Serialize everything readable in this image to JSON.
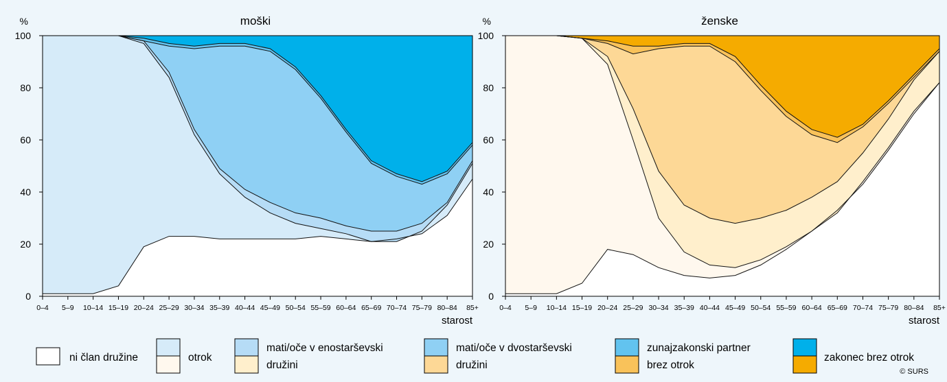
{
  "chart_data": {
    "type": "area",
    "stacked": true,
    "ylim": [
      0,
      100
    ],
    "yticks": [
      0,
      20,
      40,
      60,
      80,
      100
    ],
    "ylabel": "%",
    "xlabel": "starost",
    "categories": [
      "0–4",
      "5–9",
      "10–14",
      "15–19",
      "20–24",
      "25–29",
      "30–34",
      "35–39",
      "40–44",
      "45–49",
      "50–54",
      "55–59",
      "60–64",
      "65–69",
      "70–74",
      "75–79",
      "80–84",
      "85+"
    ],
    "legend": {
      "placement": "bottom",
      "items": [
        {
          "label": "ni član družine",
          "color_m": "#ffffff",
          "color_f": null
        },
        {
          "label": "otrok",
          "color_m": "#d6ebf9",
          "color_f": "#fff8ee"
        },
        {
          "label": "mati/oče v enostarševski družini",
          "color_m": "#b6dcf6",
          "color_f": "#ffefcc"
        },
        {
          "label": "mati/oče v dvostarševski družini",
          "color_m": "#8fd0f4",
          "color_f": "#fdd896"
        },
        {
          "label": "zunajzakonski partner brez otrok",
          "color_m": "#62c3ef",
          "color_f": "#f9c25a"
        },
        {
          "label": "zakonec brez otrok",
          "color_m": "#00b0ea",
          "color_f": "#f5ab00"
        }
      ]
    },
    "panels": [
      {
        "title": "moški",
        "boundaries": [
          [
            1,
            1,
            1,
            4,
            19,
            23,
            23,
            22,
            22,
            22,
            22,
            23,
            22,
            21,
            22,
            24,
            31,
            45
          ],
          [
            100,
            100,
            100,
            100,
            97,
            84,
            62,
            47,
            38,
            32,
            28,
            26,
            24,
            21,
            21,
            25,
            35,
            51
          ],
          [
            100,
            100,
            100,
            100,
            98,
            86,
            64,
            49,
            41,
            36,
            32,
            30,
            27,
            25,
            25,
            28,
            36,
            52
          ],
          [
            100,
            100,
            100,
            100,
            98,
            96,
            95,
            96,
            96,
            94,
            87,
            76,
            63,
            51,
            46,
            43,
            47,
            58
          ],
          [
            100,
            100,
            100,
            100,
            99,
            97,
            96,
            97,
            97,
            95,
            88,
            77,
            64,
            52,
            47,
            44,
            48,
            59
          ],
          [
            100,
            100,
            100,
            100,
            100,
            100,
            100,
            100,
            100,
            100,
            100,
            100,
            100,
            100,
            100,
            100,
            100,
            100
          ]
        ]
      },
      {
        "title": "ženske",
        "boundaries": [
          [
            1,
            1,
            1,
            5,
            18,
            16,
            11,
            8,
            7,
            8,
            12,
            18,
            25,
            33,
            43,
            56,
            70,
            82
          ],
          [
            100,
            100,
            100,
            99,
            89,
            60,
            30,
            17,
            12,
            11,
            14,
            19,
            25,
            32,
            44,
            57,
            71,
            82
          ],
          [
            100,
            100,
            100,
            99,
            92,
            72,
            48,
            35,
            30,
            28,
            30,
            33,
            38,
            44,
            55,
            68,
            83,
            94
          ],
          [
            100,
            100,
            100,
            99,
            97,
            93,
            95,
            96,
            96,
            90,
            79,
            69,
            62,
            59,
            65,
            74,
            84,
            94
          ],
          [
            100,
            100,
            100,
            99,
            98,
            96,
            96,
            97,
            97,
            92,
            81,
            71,
            64,
            61,
            66,
            75,
            85,
            95
          ],
          [
            100,
            100,
            100,
            100,
            100,
            100,
            100,
            100,
            100,
            100,
            100,
            100,
            100,
            100,
            100,
            100,
            100,
            100
          ]
        ]
      }
    ]
  },
  "footer": {
    "copyright": "© SURS"
  }
}
